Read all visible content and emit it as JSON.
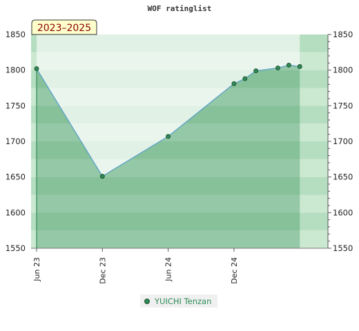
{
  "chart_data": {
    "type": "line",
    "title": "WOF ratinglist",
    "period_label": "2023–2025",
    "ylim": [
      1550,
      1850
    ],
    "yticks": [
      1550,
      1600,
      1650,
      1700,
      1750,
      1800,
      1850
    ],
    "x_range": [
      "2023-06",
      "2025-08"
    ],
    "xticks": [
      {
        "date": "2023-06",
        "label": "Jun 23"
      },
      {
        "date": "2023-12",
        "label": "Dec 23"
      },
      {
        "date": "2024-06",
        "label": "Jun 24"
      },
      {
        "date": "2024-12",
        "label": "Dec 24"
      }
    ],
    "series": [
      {
        "name": "YUICHI Tenzan",
        "color": "#2e8b57",
        "points": [
          {
            "x": "2023-06",
            "y": 1802
          },
          {
            "x": "2023-12",
            "y": 1651
          },
          {
            "x": "2024-06",
            "y": 1707
          },
          {
            "x": "2024-12",
            "y": 1781
          },
          {
            "x": "2025-01",
            "y": 1788
          },
          {
            "x": "2025-02",
            "y": 1799
          },
          {
            "x": "2025-04",
            "y": 1803
          },
          {
            "x": "2025-05",
            "y": 1807
          },
          {
            "x": "2025-06",
            "y": 1805
          }
        ]
      }
    ],
    "grid": true,
    "legend": "bottom-center"
  }
}
